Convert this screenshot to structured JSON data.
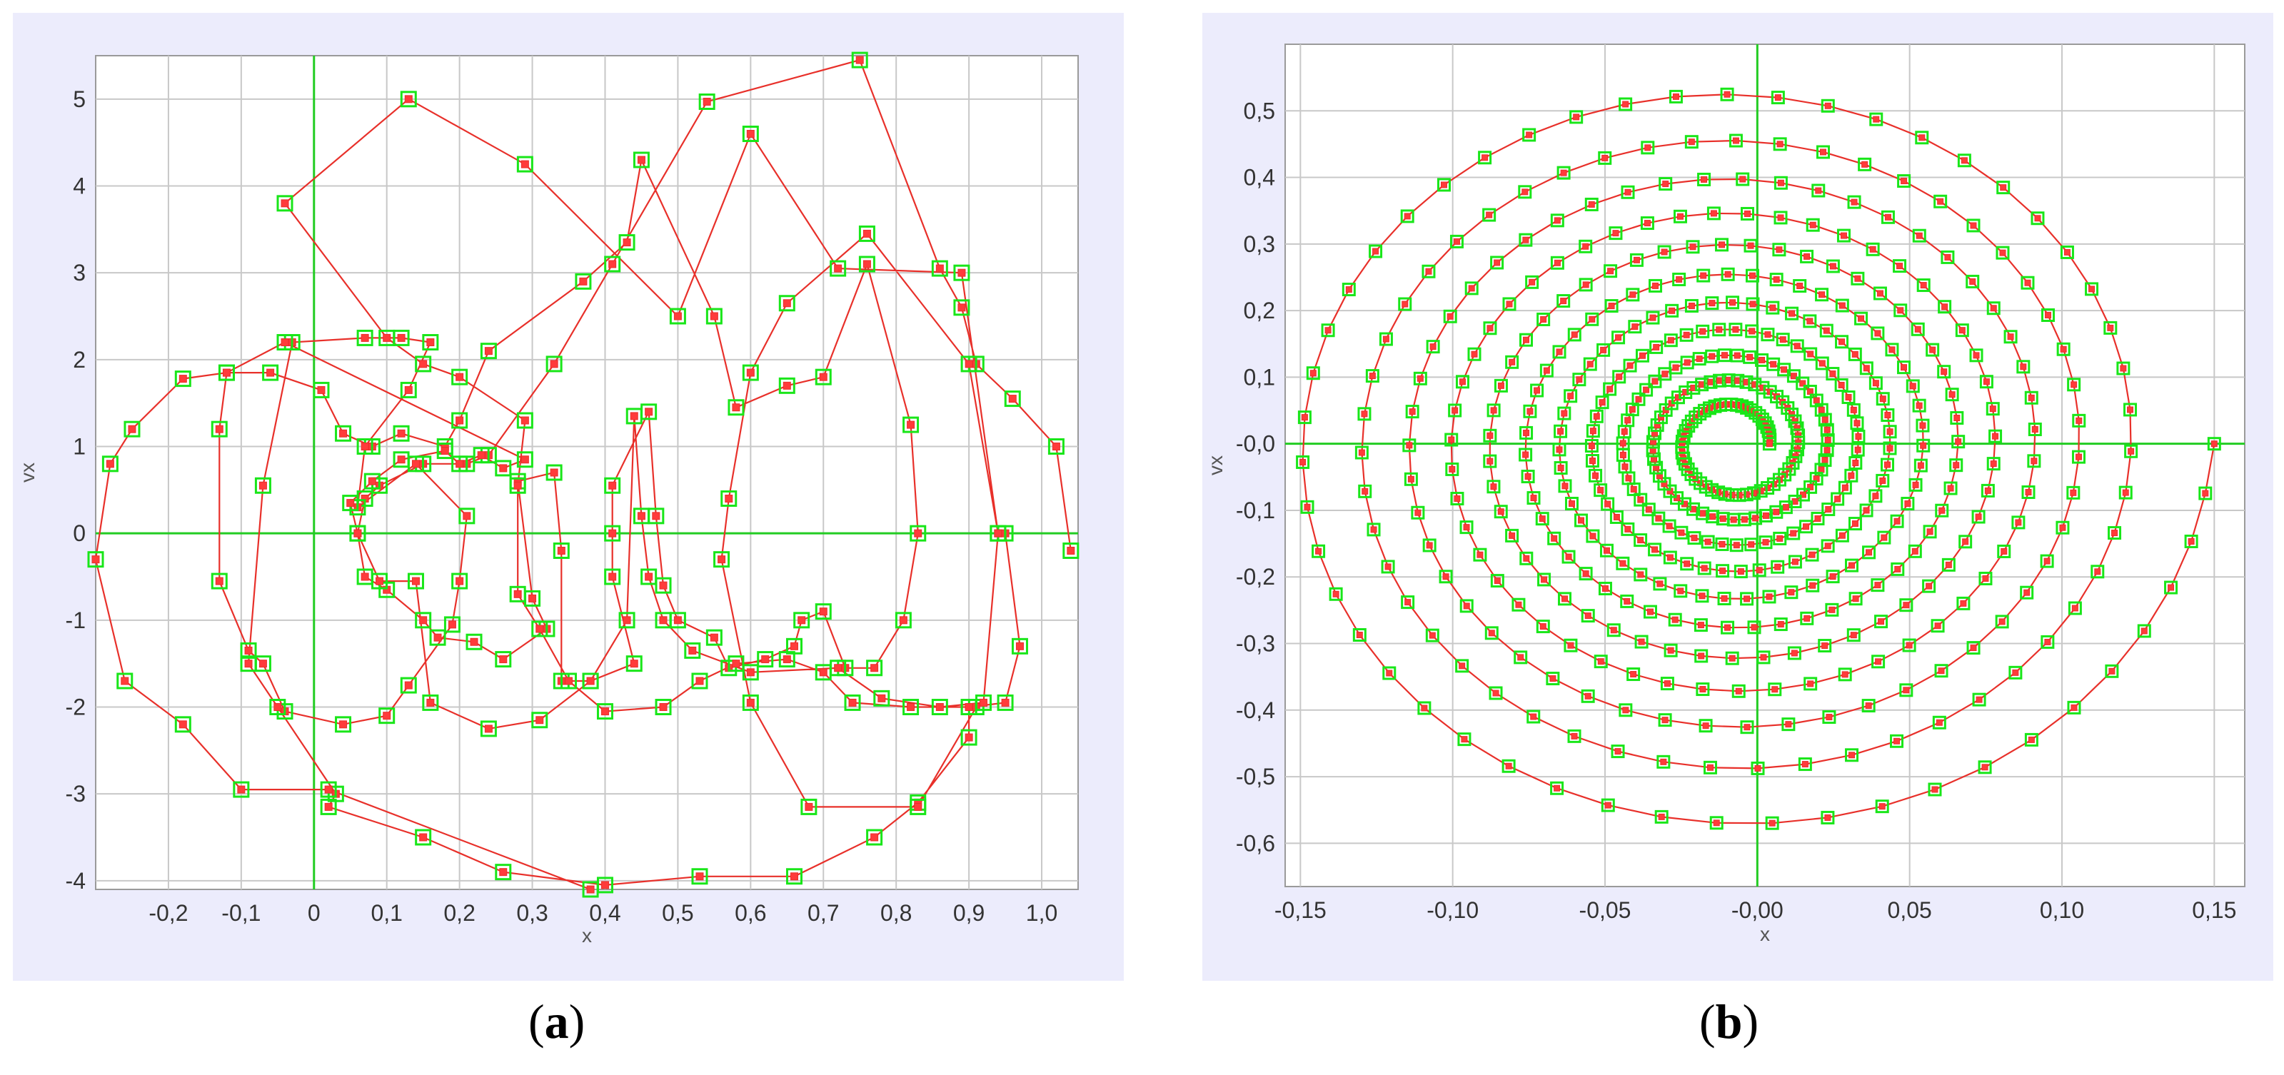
{
  "captions": {
    "a_open": "(",
    "a_letter": "a",
    "a_close": ")",
    "b_open": "(",
    "b_letter": "b",
    "b_close": ")"
  },
  "colors": {
    "line": "#e8302a",
    "marker_fill": "#ff3b3b",
    "marker_border": "#19e619",
    "axis_zero": "#22cc22",
    "grid": "#c8c8c8",
    "panel_bg": "#ececfc",
    "plot_bg": "#ffffff"
  },
  "chart_data": [
    {
      "id": "a",
      "type": "line",
      "xlabel": "x",
      "ylabel": "vx",
      "xlim": [
        -0.3,
        1.05
      ],
      "ylim": [
        -4.1,
        5.5
      ],
      "xticks": [
        -0.2,
        -0.1,
        0,
        0.1,
        0.2,
        0.3,
        0.4,
        0.5,
        0.6,
        0.7,
        0.8,
        0.9,
        1.0
      ],
      "xtick_labels": [
        "-0,2",
        "-0,1",
        "0",
        "0,1",
        "0,2",
        "0,3",
        "0,4",
        "0,5",
        "0,6",
        "0,7",
        "0,8",
        "0,9",
        "1,0"
      ],
      "yticks": [
        -4,
        -3,
        -2,
        -1,
        0,
        1,
        2,
        3,
        4,
        5
      ],
      "ytick_labels": [
        "-4",
        "-3",
        "-2",
        "-1",
        "0",
        "1",
        "2",
        "3",
        "4",
        "5"
      ],
      "grid": true,
      "series": [
        {
          "marker": "square",
          "points": [
            [
              1.04,
              -0.2
            ],
            [
              1.02,
              1.0
            ],
            [
              0.96,
              1.55
            ],
            [
              0.91,
              1.95
            ],
            [
              0.89,
              2.6
            ],
            [
              0.86,
              3.05
            ],
            [
              0.75,
              5.45
            ],
            [
              0.54,
              4.97
            ],
            [
              0.41,
              3.1
            ],
            [
              0.33,
              1.95
            ],
            [
              0.24,
              0.9
            ],
            [
              0.21,
              0.8
            ],
            [
              0.15,
              0.8
            ],
            [
              0.09,
              0.55
            ],
            [
              0.07,
              0.4
            ],
            [
              0.06,
              0.0
            ],
            [
              0.07,
              -0.5
            ],
            [
              0.1,
              -0.65
            ],
            [
              0.15,
              -1.0
            ],
            [
              0.17,
              -1.2
            ],
            [
              0.22,
              -1.25
            ],
            [
              0.26,
              -1.45
            ],
            [
              0.32,
              -1.1
            ],
            [
              0.3,
              -0.75
            ],
            [
              0.28,
              0.6
            ],
            [
              0.33,
              0.7
            ],
            [
              0.34,
              -0.2
            ],
            [
              0.34,
              -1.7
            ],
            [
              0.38,
              -1.7
            ],
            [
              0.44,
              -1.5
            ],
            [
              0.41,
              -0.5
            ],
            [
              0.41,
              0.0
            ],
            [
              0.41,
              0.55
            ],
            [
              0.46,
              1.4
            ],
            [
              0.47,
              0.2
            ],
            [
              0.48,
              -0.6
            ],
            [
              0.5,
              -1.0
            ],
            [
              0.55,
              -1.2
            ],
            [
              0.57,
              -1.55
            ],
            [
              0.62,
              -1.45
            ],
            [
              0.66,
              -1.3
            ],
            [
              0.67,
              -1.0
            ],
            [
              0.7,
              -0.9
            ],
            [
              0.73,
              -1.55
            ],
            [
              0.77,
              -1.55
            ],
            [
              0.81,
              -1.0
            ],
            [
              0.83,
              -0.0
            ],
            [
              0.82,
              1.25
            ],
            [
              0.76,
              3.1
            ],
            [
              0.7,
              1.8
            ],
            [
              0.65,
              1.7
            ],
            [
              0.58,
              1.45
            ],
            [
              0.55,
              2.5
            ],
            [
              0.45,
              4.3
            ],
            [
              0.43,
              3.35
            ],
            [
              0.37,
              2.9
            ],
            [
              0.24,
              2.1
            ],
            [
              0.2,
              1.3
            ],
            [
              0.18,
              1.0
            ],
            [
              0.12,
              1.15
            ],
            [
              0.08,
              1.0
            ],
            [
              0.04,
              1.15
            ],
            [
              0.01,
              1.65
            ],
            [
              -0.06,
              1.85
            ],
            [
              -0.12,
              1.85
            ],
            [
              -0.13,
              1.2
            ],
            [
              -0.13,
              -0.55
            ],
            [
              -0.09,
              -1.35
            ],
            [
              -0.07,
              -1.5
            ],
            [
              -0.04,
              -2.05
            ],
            [
              0.04,
              -2.2
            ],
            [
              0.1,
              -2.1
            ],
            [
              0.13,
              -1.75
            ],
            [
              0.19,
              -1.05
            ],
            [
              0.2,
              -0.55
            ],
            [
              0.21,
              0.2
            ],
            [
              0.14,
              0.8
            ],
            [
              0.06,
              0.3
            ],
            [
              0.07,
              1.0
            ],
            [
              0.13,
              1.65
            ],
            [
              0.16,
              2.2
            ],
            [
              0.12,
              2.25
            ],
            [
              0.07,
              2.25
            ],
            [
              -0.03,
              2.2
            ],
            [
              -0.07,
              0.55
            ],
            [
              -0.09,
              -1.5
            ],
            [
              -0.05,
              -2.0
            ],
            [
              0.03,
              -3.0
            ],
            [
              0.02,
              -3.15
            ],
            [
              0.15,
              -3.5
            ],
            [
              0.26,
              -3.9
            ],
            [
              0.4,
              -4.05
            ],
            [
              0.53,
              -3.95
            ],
            [
              0.66,
              -3.95
            ],
            [
              0.77,
              -3.5
            ],
            [
              0.83,
              -3.1
            ],
            [
              0.9,
              -2.35
            ],
            [
              0.9,
              -2.0
            ],
            [
              0.95,
              -1.95
            ],
            [
              0.97,
              -1.3
            ],
            [
              0.95,
              0.0
            ],
            [
              0.94,
              0.0
            ],
            [
              0.9,
              1.95
            ],
            [
              0.76,
              3.45
            ],
            [
              0.65,
              2.65
            ],
            [
              0.6,
              1.85
            ],
            [
              0.57,
              0.4
            ],
            [
              0.56,
              -0.3
            ],
            [
              0.6,
              -1.95
            ],
            [
              0.68,
              -3.15
            ],
            [
              0.83,
              -3.15
            ],
            [
              0.91,
              -2.0
            ],
            [
              0.9,
              -2.0
            ],
            [
              0.82,
              -2.0
            ],
            [
              0.74,
              -1.95
            ],
            [
              0.7,
              -1.6
            ],
            [
              0.65,
              -1.45
            ],
            [
              0.58,
              -1.5
            ],
            [
              0.53,
              -1.7
            ],
            [
              0.48,
              -2.0
            ],
            [
              0.4,
              -2.05
            ],
            [
              0.35,
              -1.7
            ],
            [
              0.31,
              -1.1
            ],
            [
              0.28,
              -0.7
            ],
            [
              0.28,
              0.55
            ],
            [
              0.29,
              1.3
            ],
            [
              0.2,
              1.8
            ],
            [
              0.15,
              1.95
            ],
            [
              0.1,
              2.25
            ],
            [
              -0.04,
              3.8
            ],
            [
              0.13,
              5.0
            ],
            [
              0.29,
              4.25
            ],
            [
              0.5,
              2.5
            ],
            [
              0.6,
              4.6
            ],
            [
              0.72,
              3.05
            ],
            [
              0.89,
              3.0
            ],
            [
              0.94,
              -0.0
            ],
            [
              0.92,
              -1.95
            ],
            [
              0.86,
              -2.0
            ],
            [
              0.78,
              -1.9
            ],
            [
              0.72,
              -1.55
            ],
            [
              0.6,
              -1.6
            ],
            [
              0.52,
              -1.35
            ],
            [
              0.48,
              -1.0
            ],
            [
              0.46,
              -0.5
            ],
            [
              0.45,
              0.2
            ],
            [
              0.44,
              1.35
            ],
            [
              0.43,
              -1.0
            ],
            [
              0.38,
              -1.7
            ],
            [
              0.31,
              -2.15
            ],
            [
              0.24,
              -2.25
            ],
            [
              0.16,
              -1.95
            ],
            [
              0.14,
              -0.55
            ],
            [
              0.09,
              -0.55
            ],
            [
              0.06,
              -0.0
            ],
            [
              0.05,
              0.35
            ],
            [
              0.08,
              0.6
            ],
            [
              0.12,
              0.85
            ],
            [
              0.18,
              0.95
            ],
            [
              0.2,
              0.8
            ],
            [
              0.23,
              0.9
            ],
            [
              0.26,
              0.75
            ],
            [
              0.29,
              0.85
            ],
            [
              -0.04,
              2.2
            ],
            [
              -0.12,
              1.85
            ],
            [
              -0.18,
              1.78
            ],
            [
              -0.25,
              1.2
            ],
            [
              -0.28,
              0.8
            ],
            [
              -0.3,
              -0.3
            ],
            [
              -0.26,
              -1.7
            ],
            [
              -0.18,
              -2.2
            ],
            [
              -0.1,
              -2.95
            ],
            [
              0.02,
              -2.95
            ],
            [
              0.38,
              -4.1
            ]
          ]
        }
      ]
    },
    {
      "id": "b",
      "type": "line",
      "xlabel": "x",
      "ylabel": "vx",
      "xlim": [
        -0.155,
        0.16
      ],
      "ylim": [
        -0.665,
        0.6
      ],
      "xticks": [
        -0.15,
        -0.1,
        -0.05,
        0.0,
        0.05,
        0.1,
        0.15
      ],
      "xtick_labels": [
        "-0,15",
        "-0,10",
        "-0,05",
        "-0,00",
        "0,05",
        "0,10",
        "0,15"
      ],
      "yticks": [
        -0.6,
        -0.5,
        -0.4,
        -0.3,
        -0.2,
        -0.1,
        0.0,
        0.1,
        0.2,
        0.3,
        0.4,
        0.5
      ],
      "ytick_labels": [
        "-0,6",
        "-0,5",
        "-0,4",
        "-0,3",
        "-0,2",
        "-0,1",
        "-0,0",
        "0,1",
        "0,2",
        "0,3",
        "0,4",
        "0,5"
      ],
      "grid": true,
      "series": [
        {
          "marker": "square",
          "spiral": {
            "center": [
              -0.008,
              0.0
            ],
            "start_radius_x": 0.158,
            "start_radius_y": 0.61,
            "end_radius_x": 0.012,
            "end_radius_y": 0.05,
            "turns": 11,
            "points": 560
          }
        }
      ]
    }
  ]
}
